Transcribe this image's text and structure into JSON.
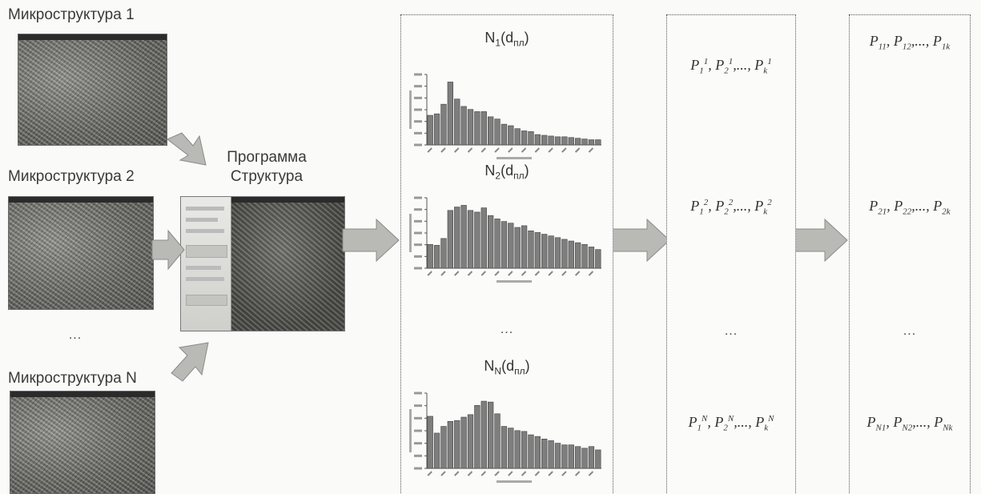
{
  "microstructures": [
    {
      "label": "Микроструктура 1"
    },
    {
      "label": "Микроструктура 2"
    },
    {
      "label": "Микроструктура N"
    }
  ],
  "micro_ellipsis": "...",
  "program": {
    "line1": "Программа",
    "line2": "Структура"
  },
  "histograms": [
    {
      "title_main": "N",
      "title_sub": "1",
      "title_arg": "d",
      "title_arg_sub": "пл",
      "values": [
        40,
        42,
        55,
        85,
        62,
        52,
        48,
        45,
        45,
        38,
        35,
        28,
        26,
        22,
        19,
        18,
        14,
        13,
        12,
        11,
        11,
        10,
        9,
        8,
        7,
        7
      ]
    },
    {
      "title_main": "N",
      "title_sub": "2",
      "title_arg": "d",
      "title_arg_sub": "пл",
      "values": [
        28,
        27,
        35,
        68,
        72,
        74,
        68,
        66,
        71,
        62,
        58,
        55,
        53,
        48,
        50,
        44,
        42,
        40,
        38,
        36,
        34,
        32,
        30,
        28,
        25,
        22
      ]
    },
    {
      "title_main": "N",
      "title_sub": "N",
      "title_arg": "d",
      "title_arg_sub": "пл",
      "values": [
        62,
        42,
        50,
        56,
        57,
        61,
        64,
        75,
        80,
        79,
        65,
        50,
        48,
        45,
        44,
        40,
        38,
        35,
        33,
        30,
        28,
        28,
        26,
        24,
        26,
        22
      ]
    }
  ],
  "hist_ellipsis": "...",
  "moments": [
    {
      "sup": "1"
    },
    {
      "sup": "2"
    },
    {
      "sup": "N"
    }
  ],
  "moments_ellipsis": "...",
  "params": [
    {
      "idx1": "11",
      "idx2": "12",
      "idxk": "1k"
    },
    {
      "idx1": "21",
      "idx2": "22",
      "idxk": "2k"
    },
    {
      "idx1": "N1",
      "idx2": "N2",
      "idxk": "Nk"
    }
  ],
  "params_ellipsis": "..."
}
